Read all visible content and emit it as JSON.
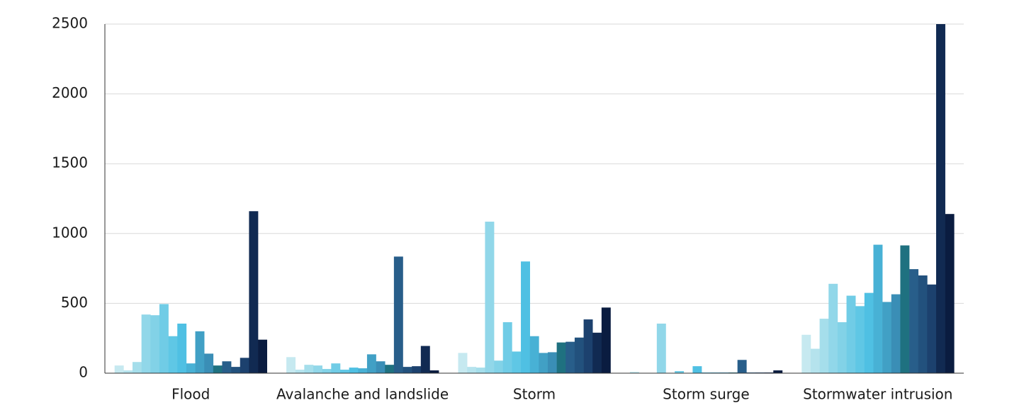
{
  "chart_data": {
    "type": "bar",
    "categories": [
      "Flood",
      "Avalanche and landslide",
      "Storm",
      "Storm surge",
      "Stormwater intrusion"
    ],
    "series": [
      {
        "color": "#c6e9f0",
        "values": [
          55,
          115,
          145,
          10,
          275
        ]
      },
      {
        "color": "#b5e3ed",
        "values": [
          20,
          25,
          45,
          0,
          175
        ]
      },
      {
        "color": "#a5deeb",
        "values": [
          80,
          60,
          40,
          0,
          390
        ]
      },
      {
        "color": "#91d7e9",
        "values": [
          420,
          55,
          1085,
          355,
          640
        ]
      },
      {
        "color": "#82d2e7",
        "values": [
          415,
          30,
          90,
          0,
          365
        ]
      },
      {
        "color": "#70cce6",
        "values": [
          495,
          70,
          365,
          15,
          555
        ]
      },
      {
        "color": "#5fc7e5",
        "values": [
          265,
          25,
          155,
          0,
          480
        ]
      },
      {
        "color": "#4fc0e3",
        "values": [
          355,
          40,
          800,
          50,
          575
        ]
      },
      {
        "color": "#48b1d5",
        "values": [
          70,
          35,
          265,
          5,
          920
        ]
      },
      {
        "color": "#41a0c5",
        "values": [
          300,
          135,
          145,
          5,
          510
        ]
      },
      {
        "color": "#3a8eb6",
        "values": [
          140,
          85,
          150,
          5,
          565
        ]
      },
      {
        "color": "#1f7180",
        "values": [
          55,
          60,
          220,
          5,
          915
        ]
      },
      {
        "color": "#285e8a",
        "values": [
          85,
          835,
          225,
          95,
          745
        ]
      },
      {
        "color": "#22517d",
        "values": [
          45,
          45,
          255,
          5,
          700
        ]
      },
      {
        "color": "#1c416e",
        "values": [
          110,
          50,
          385,
          5,
          635
        ]
      },
      {
        "color": "#112a52",
        "values": [
          1160,
          195,
          290,
          5,
          2500
        ]
      },
      {
        "color": "#0a1c40",
        "values": [
          240,
          20,
          470,
          20,
          1140
        ]
      }
    ],
    "ylim": [
      0,
      2500
    ],
    "yticks": [
      0,
      500,
      1000,
      1500,
      2000,
      2500
    ],
    "grid": true
  }
}
